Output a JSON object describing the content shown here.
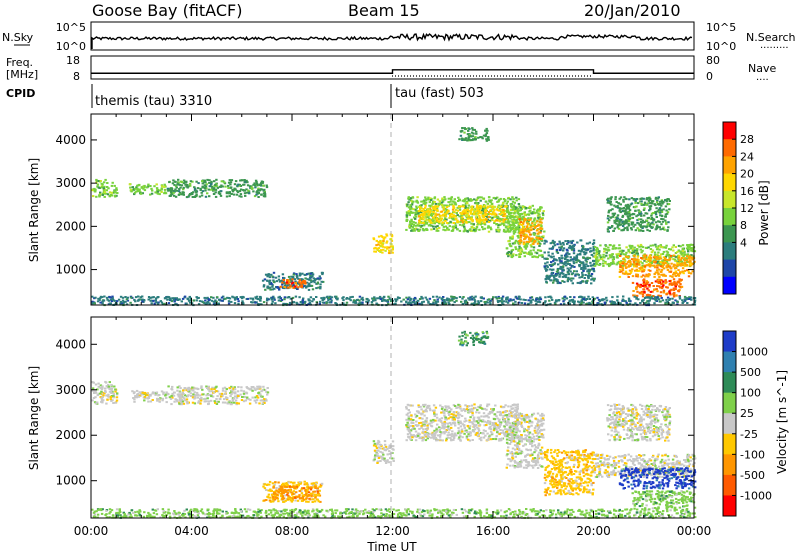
{
  "header": {
    "station": "Goose Bay (fitACF)",
    "beam": "Beam 15",
    "date": "20/Jan/2010"
  },
  "strips": {
    "nsky": {
      "label": "N.Sky",
      "right_label": "N.Search",
      "y_ticks": [
        "10^5",
        "10^0"
      ],
      "right_ticks": [
        "10^5",
        "10^0"
      ],
      "right_legend_dots": "........."
    },
    "freq": {
      "label_lines": [
        "Freq.",
        "[MHz]"
      ],
      "y_ticks": [
        "18",
        "8"
      ],
      "right_label": "Nave",
      "right_ticks": [
        "80",
        "0"
      ],
      "right_legend_dots": "....",
      "segments": [
        {
          "start_hour": 0,
          "end_hour": 12,
          "freq_mhz": 10.5
        },
        {
          "start_hour": 12,
          "end_hour": 20,
          "freq_mhz": 12
        },
        {
          "start_hour": 20,
          "end_hour": 24,
          "freq_mhz": 10.5
        }
      ]
    },
    "cpid": {
      "label": "CPID",
      "entries": [
        {
          "text": "themis (tau) 3310",
          "start_hour": 0
        },
        {
          "text": "tau (fast) 503",
          "start_hour": 12
        }
      ]
    }
  },
  "colorbars": {
    "power": {
      "label": "Power [dB]",
      "ticks": [
        "28",
        "24",
        "20",
        "16",
        "12",
        "8",
        "4"
      ],
      "colors": [
        "#ff0000",
        "#ff6a00",
        "#ffa300",
        "#ffd700",
        "#c8e62a",
        "#78d23c",
        "#3c9650",
        "#2c7d7d",
        "#1e46a8",
        "#0000ff"
      ]
    },
    "velocity": {
      "label": "Velocity [m s^-1]",
      "ticks": [
        "1000",
        "500",
        "100",
        "25",
        "-25",
        "-100",
        "-500",
        "-1000"
      ],
      "colors": [
        "#1e3cc8",
        "#2f80b0",
        "#2e8b57",
        "#7fd04a",
        "#c8c8c8",
        "#ffc800",
        "#ff9600",
        "#ff5a00",
        "#ff0000"
      ]
    }
  },
  "chart_data": [
    {
      "type": "heatmap",
      "title": "Power",
      "xlabel": "Time UT",
      "ylabel": "Slant Range [km]",
      "x_range_hours": [
        0,
        24
      ],
      "ylim": [
        180,
        4600
      ],
      "x_ticks": [
        "00:00",
        "04:00",
        "08:00",
        "12:00",
        "16:00",
        "20:00",
        "00:00"
      ],
      "y_ticks": [
        1000,
        2000,
        3000,
        4000
      ],
      "colorbar": "power",
      "regions": [
        {
          "t": [
            0.0,
            1.0
          ],
          "r": [
            2700,
            3100
          ],
          "level": 5
        },
        {
          "t": [
            1.5,
            3.0
          ],
          "r": [
            2750,
            3000
          ],
          "level": 5
        },
        {
          "t": [
            3.0,
            7.0
          ],
          "r": [
            2700,
            3100
          ],
          "level": 6
        },
        {
          "t": [
            6.8,
            9.2
          ],
          "r": [
            550,
            950
          ],
          "level": 7
        },
        {
          "t": [
            7.5,
            8.5
          ],
          "r": [
            600,
            800
          ],
          "level": 1
        },
        {
          "t": [
            11.2,
            12.0
          ],
          "r": [
            1400,
            1850
          ],
          "level": 3
        },
        {
          "t": [
            12.5,
            17.0
          ],
          "r": [
            1900,
            2700
          ],
          "level": 5
        },
        {
          "t": [
            13.0,
            16.5
          ],
          "r": [
            2100,
            2500
          ],
          "level": 3
        },
        {
          "t": [
            14.6,
            15.8
          ],
          "r": [
            4000,
            4300
          ],
          "level": 6
        },
        {
          "t": [
            16.5,
            18.0
          ],
          "r": [
            1300,
            2500
          ],
          "level": 5
        },
        {
          "t": [
            17.0,
            17.9
          ],
          "r": [
            1600,
            2200
          ],
          "level": 2
        },
        {
          "t": [
            18.0,
            20.0
          ],
          "r": [
            700,
            1700
          ],
          "level": 7
        },
        {
          "t": [
            20.0,
            24.0
          ],
          "r": [
            1100,
            1600
          ],
          "level": 5
        },
        {
          "t": [
            21.0,
            24.0
          ],
          "r": [
            850,
            1350
          ],
          "level": 2
        },
        {
          "t": [
            21.5,
            23.5
          ],
          "r": [
            400,
            800
          ],
          "level": 1
        },
        {
          "t": [
            20.5,
            23.0
          ],
          "r": [
            1900,
            2700
          ],
          "level": 6
        },
        {
          "t": [
            0.0,
            24.0
          ],
          "r": [
            200,
            400
          ],
          "level": 7
        }
      ]
    },
    {
      "type": "heatmap",
      "title": "Velocity",
      "xlabel": "Time UT",
      "ylabel": "Slant Range [km]",
      "x_range_hours": [
        0,
        24
      ],
      "ylim": [
        180,
        4600
      ],
      "x_ticks": [
        "00:00",
        "04:00",
        "08:00",
        "12:00",
        "16:00",
        "20:00",
        "00:00"
      ],
      "y_ticks": [
        1000,
        2000,
        3000,
        4000
      ],
      "colorbar": "velocity",
      "regions": [
        {
          "t": [
            0.0,
            1.0
          ],
          "r": [
            2700,
            3200
          ],
          "level": 4
        },
        {
          "t": [
            1.5,
            3.0
          ],
          "r": [
            2750,
            3000
          ],
          "level": 4
        },
        {
          "t": [
            3.0,
            7.0
          ],
          "r": [
            2700,
            3100
          ],
          "level": 4
        },
        {
          "t": [
            6.8,
            9.2
          ],
          "r": [
            550,
            1000
          ],
          "level": 5
        },
        {
          "t": [
            7.2,
            9.0
          ],
          "r": [
            600,
            900
          ],
          "level": 6
        },
        {
          "t": [
            11.2,
            12.0
          ],
          "r": [
            1400,
            1900
          ],
          "level": 4
        },
        {
          "t": [
            12.5,
            17.0
          ],
          "r": [
            1900,
            2700
          ],
          "level": 4
        },
        {
          "t": [
            14.6,
            15.8
          ],
          "r": [
            4000,
            4300
          ],
          "level": 2
        },
        {
          "t": [
            16.5,
            18.0
          ],
          "r": [
            1300,
            2500
          ],
          "level": 4
        },
        {
          "t": [
            18.0,
            20.0
          ],
          "r": [
            700,
            1700
          ],
          "level": 5
        },
        {
          "t": [
            20.0,
            24.0
          ],
          "r": [
            1100,
            1600
          ],
          "level": 4
        },
        {
          "t": [
            21.0,
            24.0
          ],
          "r": [
            850,
            1300
          ],
          "level": 0
        },
        {
          "t": [
            21.5,
            24.0
          ],
          "r": [
            400,
            800
          ],
          "level": 3
        },
        {
          "t": [
            20.5,
            23.0
          ],
          "r": [
            1900,
            2700
          ],
          "level": 4
        },
        {
          "t": [
            0.0,
            24.0
          ],
          "r": [
            200,
            400
          ],
          "level": 3
        }
      ]
    }
  ]
}
